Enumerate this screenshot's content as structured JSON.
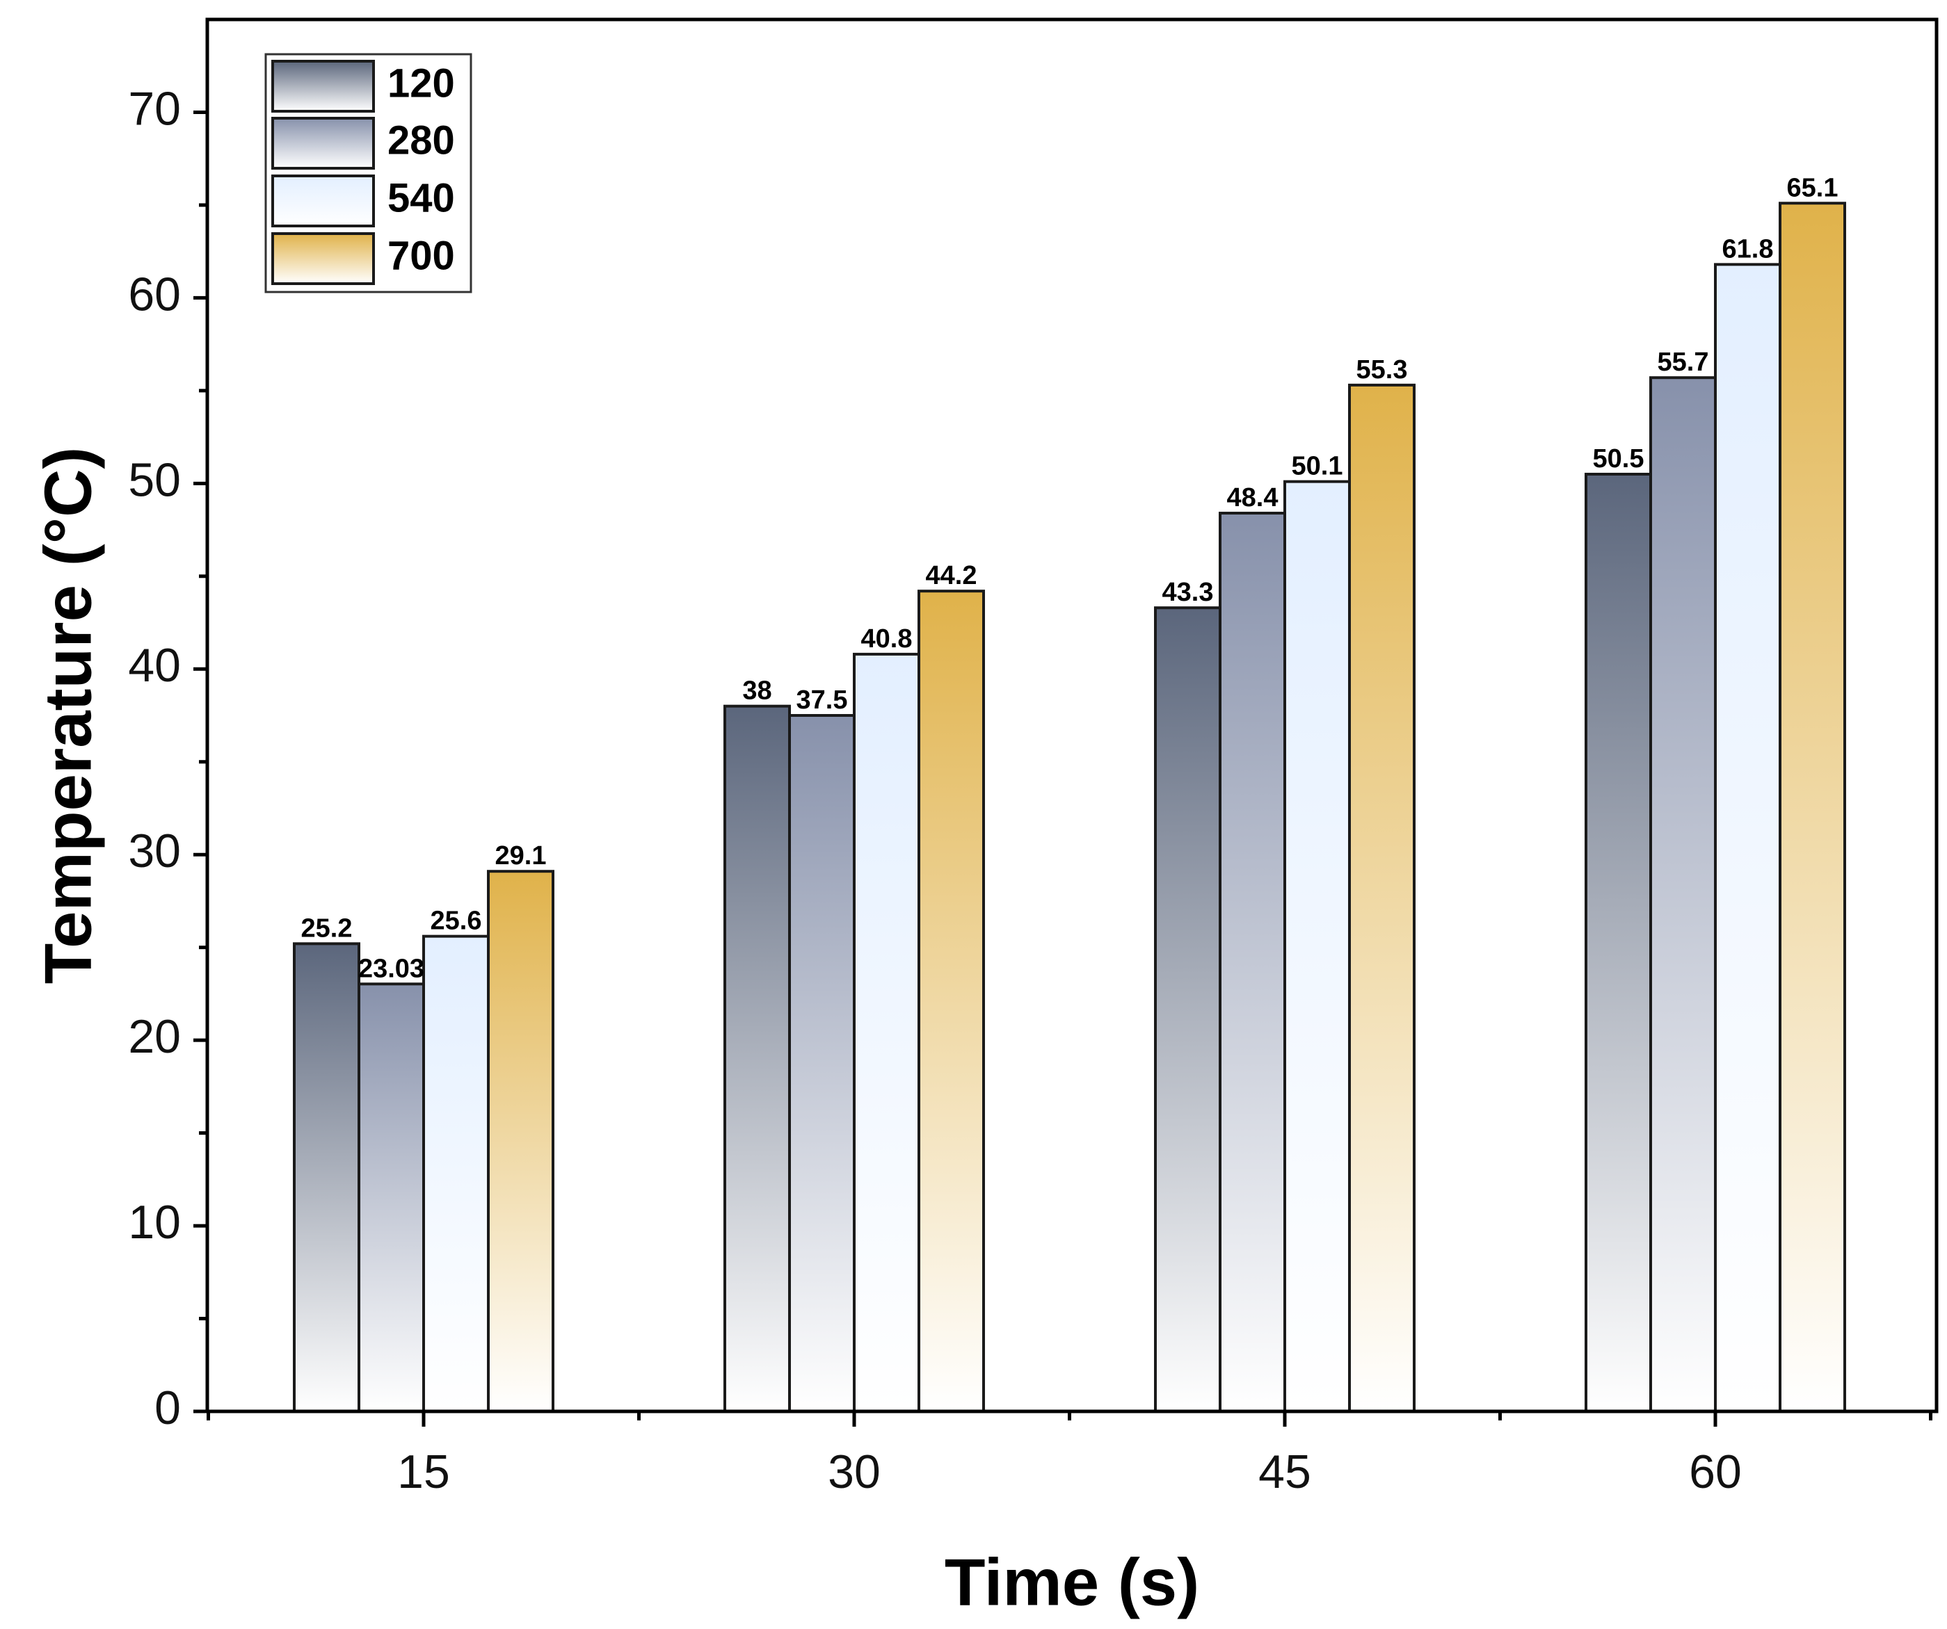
{
  "chart_data": {
    "type": "bar",
    "title": "",
    "xlabel": "Time (s)",
    "ylabel": "Temperature (°C)",
    "categories": [
      "15",
      "30",
      "45",
      "60"
    ],
    "ylim": [
      0,
      75
    ],
    "yticks": [
      0,
      10,
      20,
      30,
      40,
      50,
      60,
      70
    ],
    "series": [
      {
        "name": "120",
        "values": [
          25.2,
          38,
          43.3,
          50.5
        ],
        "labels": [
          "25.2",
          "38",
          "43.3",
          "50.5"
        ],
        "color_top": "#5b667c",
        "color_bottom": "#ffffff"
      },
      {
        "name": "280",
        "values": [
          23.03,
          37.5,
          48.4,
          55.7
        ],
        "labels": [
          "23.03",
          "37.5",
          "48.4",
          "55.7"
        ],
        "color_top": "#8791ab",
        "color_bottom": "#ffffff"
      },
      {
        "name": "540",
        "values": [
          25.6,
          40.8,
          50.1,
          61.8
        ],
        "labels": [
          "25.6",
          "40.8",
          "50.1",
          "61.8"
        ],
        "color_top": "#e3efff",
        "color_bottom": "#ffffff"
      },
      {
        "name": "700",
        "values": [
          29.1,
          44.2,
          55.3,
          65.1
        ],
        "labels": [
          "29.1",
          "44.2",
          "55.3",
          "65.1"
        ],
        "color_top": "#e0b24a",
        "color_bottom": "#ffffff"
      }
    ],
    "legend": "top-left",
    "grid": false
  }
}
